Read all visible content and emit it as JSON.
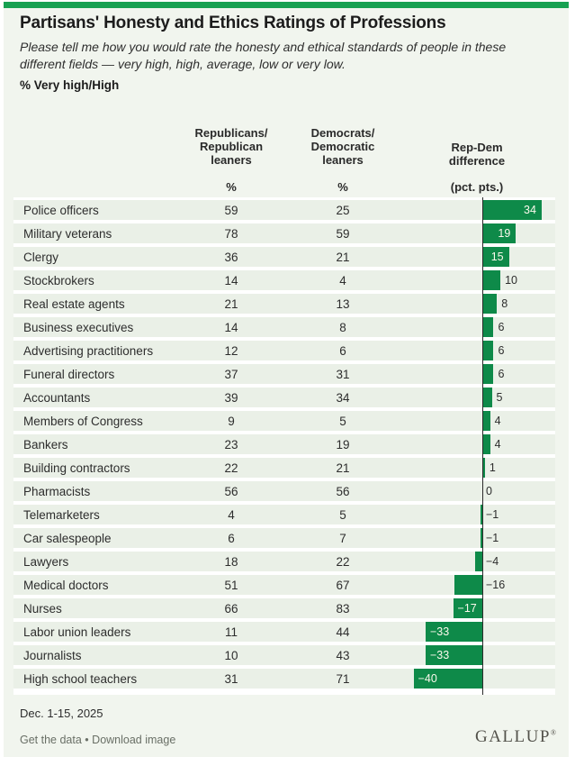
{
  "accent": {
    "top_bar_green": "#17a151",
    "bar_green": "#0e8a49",
    "row_band": "#eaf0e7",
    "card_background": "#f1f5ee"
  },
  "header": {
    "title": "Partisans' Honesty and Ethics Ratings of Professions",
    "subtitle": "Please tell me how you would rate the honesty and ethical standards of people in these different fields — very high, high, average, low or very low.",
    "measure": "% Very high/High"
  },
  "columns": {
    "rep": "Republicans/\nRepublican\nleaners",
    "dem": "Democrats/\nDemocratic\nleaners",
    "diff": "Rep-Dem\ndifference",
    "rep_unit": "%",
    "dem_unit": "%",
    "diff_unit": "(pct. pts.)"
  },
  "footer": {
    "date": "Dec. 1-15, 2025",
    "link_get_data": "Get the data",
    "separator": "•",
    "link_download": "Download image",
    "logo": "GALLUP",
    "logo_mark": "®"
  },
  "chart_data": {
    "type": "bar",
    "orientation": "horizontal-diverging",
    "title": "Partisans' Honesty and Ethics Ratings of Professions",
    "subtitle": "% Very high/High",
    "categories": [
      "Police officers",
      "Military veterans",
      "Clergy",
      "Stockbrokers",
      "Real estate agents",
      "Business executives",
      "Advertising practitioners",
      "Funeral directors",
      "Accountants",
      "Members of Congress",
      "Bankers",
      "Building contractors",
      "Pharmacists",
      "Telemarketers",
      "Car salespeople",
      "Lawyers",
      "Medical doctors",
      "Nurses",
      "Labor union leaders",
      "Journalists",
      "High school teachers"
    ],
    "series": [
      {
        "name": "Republicans/Republican leaners (%)",
        "values": [
          59,
          78,
          36,
          14,
          21,
          14,
          12,
          37,
          39,
          9,
          23,
          22,
          56,
          4,
          6,
          18,
          51,
          66,
          11,
          10,
          31
        ]
      },
      {
        "name": "Democrats/Democratic leaners (%)",
        "values": [
          25,
          59,
          21,
          4,
          13,
          8,
          6,
          31,
          34,
          5,
          19,
          21,
          56,
          5,
          7,
          22,
          67,
          83,
          44,
          43,
          71
        ]
      },
      {
        "name": "Rep-Dem difference (pct. pts.)",
        "values": [
          34,
          19,
          15,
          10,
          8,
          6,
          6,
          6,
          5,
          4,
          4,
          1,
          0,
          -1,
          -1,
          -4,
          -16,
          -17,
          -33,
          -33,
          -40
        ]
      }
    ],
    "bar_series": "Rep-Dem difference (pct. pts.)",
    "bar_axis_range": [
      -40,
      34
    ],
    "grid": false,
    "legend_position": "none"
  }
}
